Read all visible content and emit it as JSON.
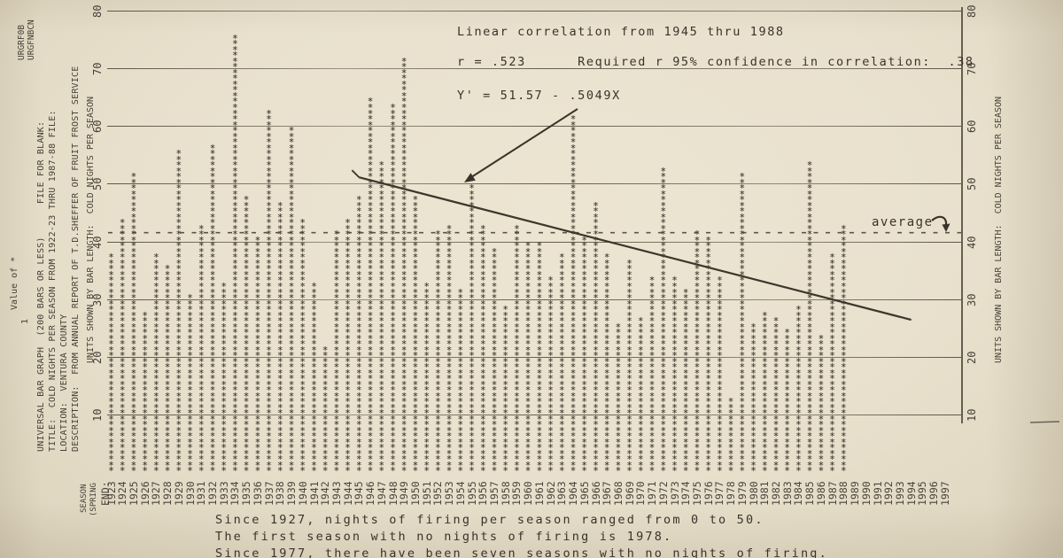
{
  "page": {
    "background": "#e9e1cd",
    "ink": "#3f3a31"
  },
  "header_annotations": {
    "correlation_note": "Linear correlation from 1945 thru 1988",
    "r_line": "r = .523      Required r 95% confidence in correlation:  .38",
    "equation": "Y' = 51.57 - .5049X",
    "average_label": "average"
  },
  "left_meta": {
    "file_block_1": "URGRF0B",
    "file_block_2": "URGFNBCN",
    "line_1": "UNIVERSAL BAR GRAPH  (200 BARS OR LESS)      FILE FOR BLANK:",
    "line_2": "TITLE:  COLD NIGHTS PER SEASON FROM 1922-23 THRU 1987-88 FILE:",
    "line_3": "LOCATION:  VENTURA COUNTY",
    "line_4": "DESCRIPTION:  FROM ANNUAL REPORT OF T.D.SHEFFER OF FRUIT FROST SERVICE",
    "value_of_star": "Value of *",
    "value_of_star_value": "1",
    "season_col_1": "SEASON",
    "season_col_2": "(SPRING",
    "season_col_3": "END:"
  },
  "axes": {
    "left_title": "UNITS SHOWN BY BAR LENGTH:  COLD NIGHTS PER SEASON",
    "right_title": "UNITS SHOWN BY BAR LENGTH:  COLD NIGHTS PER SEASON",
    "yticks": [
      10,
      20,
      30,
      40,
      50,
      60,
      70,
      80
    ]
  },
  "chart_data": {
    "type": "bar",
    "title": "COLD NIGHTS PER SEASON FROM 1922-23 THRU 1987-88",
    "ylabel": "COLD NIGHTS PER SEASON",
    "xlabel": "SEASON (SPRING END)",
    "ylim": [
      0,
      80
    ],
    "grid": true,
    "bar_glyph": "*",
    "unit_per_glyph": 1,
    "categories": [
      1923,
      1924,
      1925,
      1926,
      1927,
      1928,
      1929,
      1930,
      1931,
      1932,
      1933,
      1934,
      1935,
      1936,
      1937,
      1938,
      1939,
      1940,
      1941,
      1942,
      1943,
      1944,
      1945,
      1946,
      1947,
      1948,
      1949,
      1950,
      1951,
      1952,
      1953,
      1954,
      1955,
      1956,
      1957,
      1958,
      1959,
      1960,
      1961,
      1962,
      1963,
      1964,
      1965,
      1966,
      1967,
      1968,
      1969,
      1970,
      1971,
      1972,
      1973,
      1974,
      1975,
      1976,
      1977,
      1978,
      1979,
      1980,
      1981,
      1982,
      1983,
      1984,
      1985,
      1986,
      1987,
      1988,
      1989,
      1990,
      1991,
      1992,
      1993,
      1994,
      1995,
      1996,
      1997
    ],
    "values": [
      38,
      44,
      52,
      28,
      38,
      36,
      56,
      31,
      43,
      57,
      33,
      76,
      48,
      41,
      63,
      47,
      60,
      44,
      33,
      22,
      42,
      44,
      48,
      65,
      54,
      64,
      72,
      48,
      33,
      42,
      43,
      32,
      50,
      43,
      39,
      29,
      43,
      40,
      40,
      34,
      38,
      62,
      41,
      47,
      38,
      26,
      37,
      27,
      34,
      53,
      34,
      32,
      42,
      41,
      34,
      13,
      52,
      26,
      28,
      27,
      25,
      29,
      54,
      24,
      38,
      43,
      null,
      null,
      null,
      null,
      null,
      null,
      null,
      null,
      null
    ],
    "average": 41.5,
    "regression": {
      "r": 0.523,
      "required_r_95": 0.38,
      "from_year": 1945,
      "thru_year": 1988,
      "equation": "Y' = 51.57 - .5049X",
      "line_start": {
        "year": 1945,
        "value": 51.1
      },
      "line_end": {
        "year": 1994,
        "value": 26.4
      }
    }
  },
  "footer": {
    "line_1": "Since 1927, nights of firing per season ranged from 0 to 50.",
    "line_2": "The first season with no nights of firing is 1978.",
    "line_3": "Since 1977, there have been seven seasons with no nights of firing."
  }
}
